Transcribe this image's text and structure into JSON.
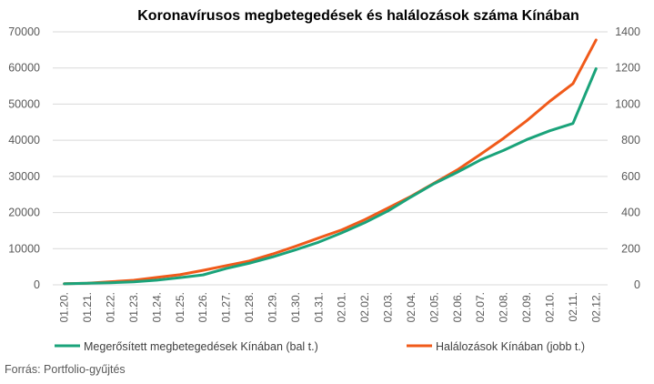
{
  "chart_data": {
    "type": "line",
    "title": "Koronavírusos megbetegedések és halálozások száma Kínában",
    "source": "Forrás: Portfolio-gyűjtés",
    "categories": [
      "01.20.",
      "01.21.",
      "01.22.",
      "01.23.",
      "01.24.",
      "01.25.",
      "01.26.",
      "01.27.",
      "01.28.",
      "01.29.",
      "01.30.",
      "01.31.",
      "02.01.",
      "02.02.",
      "02.03.",
      "02.04.",
      "02.05.",
      "02.06.",
      "02.07.",
      "02.08.",
      "02.09.",
      "02.10.",
      "02.11.",
      "02.12."
    ],
    "y_left": {
      "ticks": [
        "0",
        "10000",
        "20000",
        "30000",
        "40000",
        "50000",
        "60000",
        "70000"
      ],
      "lim": [
        0,
        70000
      ]
    },
    "y_right": {
      "ticks": [
        "0",
        "200",
        "400",
        "600",
        "800",
        "1000",
        "1200",
        "1400"
      ],
      "lim": [
        0,
        1400
      ]
    },
    "grid": true,
    "legend_position": "bottom",
    "series": [
      {
        "name": "Megerősített megbetegedések Kínában (bal  t.)",
        "axis": "left",
        "color": "#1aa37a",
        "values": [
          290,
          440,
          570,
          830,
          1290,
          1980,
          2740,
          4515,
          5974,
          7711,
          9692,
          11791,
          14380,
          17205,
          20438,
          24324,
          28018,
          31161,
          34546,
          37198,
          40171,
          42638,
          44653,
          59804
        ]
      },
      {
        "name": "Halálozások Kínában (jobb t.)",
        "axis": "right",
        "color": "#f05a1a",
        "values": [
          6,
          9,
          17,
          25,
          41,
          56,
          80,
          106,
          132,
          170,
          213,
          259,
          304,
          361,
          425,
          490,
          563,
          636,
          722,
          811,
          908,
          1016,
          1113,
          1355
        ]
      }
    ]
  }
}
